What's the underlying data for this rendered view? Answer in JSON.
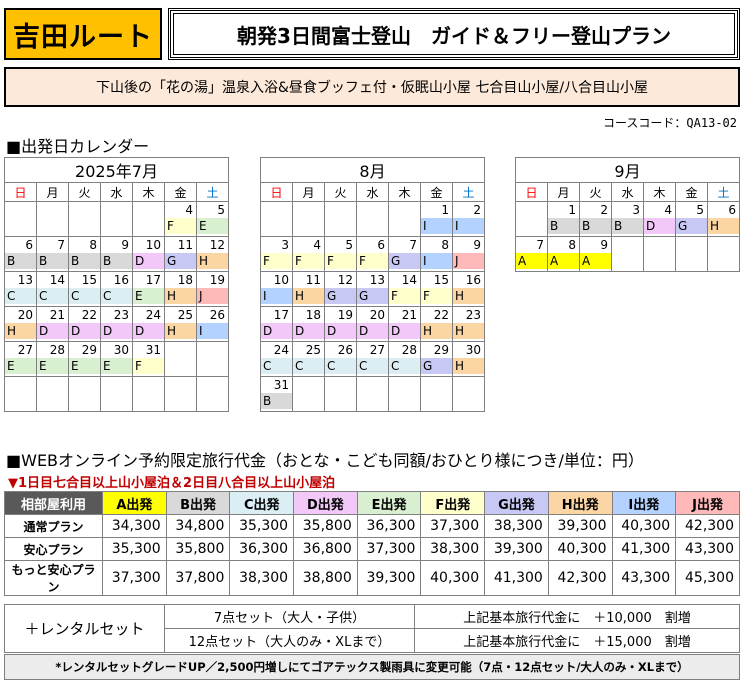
{
  "header": {
    "route": "吉田ルート",
    "title": "朝発3日間富士登山　ガイド＆フリー登山プラン",
    "subtitle": "下山後の「花の湯」温泉入浴&昼食ブッフェ付・仮眠山小屋 七合目山小屋/八合目山小屋",
    "course_code": "コースコード：QA13-02"
  },
  "calendar_title": "■出発日カレンダー",
  "weekdays": [
    "日",
    "月",
    "火",
    "水",
    "木",
    "金",
    "土"
  ],
  "colors": {
    "A": "#ffff00",
    "B": "#d9d9d9",
    "C": "#daeef3",
    "D": "#f2c8f8",
    "E": "#d8f0d0",
    "F": "#ffffcc",
    "G": "#c8c8f4",
    "H": "#fcd5a4",
    "I": "#b4d2ff",
    "J": "#ffb9b9"
  },
  "months": [
    {
      "label": "2025年7月",
      "weeks": [
        [
          null,
          null,
          null,
          null,
          null,
          [
            "4",
            "F"
          ],
          [
            "5",
            "E"
          ]
        ],
        [
          [
            "6",
            "B"
          ],
          [
            "7",
            "B"
          ],
          [
            "8",
            "B"
          ],
          [
            "9",
            "B"
          ],
          [
            "10",
            "D"
          ],
          [
            "11",
            "G"
          ],
          [
            "12",
            "H"
          ]
        ],
        [
          [
            "13",
            "C"
          ],
          [
            "14",
            "C"
          ],
          [
            "15",
            "C"
          ],
          [
            "16",
            "C"
          ],
          [
            "17",
            "E"
          ],
          [
            "18",
            "H"
          ],
          [
            "19",
            "J"
          ]
        ],
        [
          [
            "20",
            "H"
          ],
          [
            "21",
            "D"
          ],
          [
            "22",
            "D"
          ],
          [
            "23",
            "D"
          ],
          [
            "24",
            "D"
          ],
          [
            "25",
            "H"
          ],
          [
            "26",
            "I"
          ]
        ],
        [
          [
            "27",
            "E"
          ],
          [
            "28",
            "E"
          ],
          [
            "29",
            "E"
          ],
          [
            "30",
            "E"
          ],
          [
            "31",
            "F"
          ],
          null,
          null
        ],
        [
          null,
          null,
          null,
          null,
          null,
          null,
          null
        ]
      ]
    },
    {
      "label": "8月",
      "weeks": [
        [
          null,
          null,
          null,
          null,
          null,
          [
            "1",
            "I"
          ],
          [
            "2",
            "I"
          ]
        ],
        [
          [
            "3",
            "F"
          ],
          [
            "4",
            "F"
          ],
          [
            "5",
            "F"
          ],
          [
            "6",
            "F"
          ],
          [
            "7",
            "G"
          ],
          [
            "8",
            "I"
          ],
          [
            "9",
            "J"
          ]
        ],
        [
          [
            "10",
            "I"
          ],
          [
            "11",
            "H"
          ],
          [
            "12",
            "G"
          ],
          [
            "13",
            "G"
          ],
          [
            "14",
            "F"
          ],
          [
            "15",
            "F"
          ],
          [
            "16",
            "H"
          ]
        ],
        [
          [
            "17",
            "D"
          ],
          [
            "18",
            "D"
          ],
          [
            "19",
            "D"
          ],
          [
            "20",
            "D"
          ],
          [
            "21",
            "D"
          ],
          [
            "22",
            "H"
          ],
          [
            "23",
            "H"
          ]
        ],
        [
          [
            "24",
            "C"
          ],
          [
            "25",
            "C"
          ],
          [
            "26",
            "C"
          ],
          [
            "27",
            "C"
          ],
          [
            "28",
            "C"
          ],
          [
            "29",
            "G"
          ],
          [
            "30",
            "H"
          ]
        ],
        [
          [
            "31",
            "B"
          ],
          null,
          null,
          null,
          null,
          null,
          null
        ]
      ]
    },
    {
      "label": "9月",
      "weeks": [
        [
          null,
          [
            "1",
            "B"
          ],
          [
            "2",
            "B"
          ],
          [
            "3",
            "B"
          ],
          [
            "4",
            "D"
          ],
          [
            "5",
            "G"
          ],
          [
            "6",
            "H"
          ]
        ],
        [
          [
            "7",
            "A"
          ],
          [
            "8",
            "A"
          ],
          [
            "9",
            "A"
          ],
          null,
          null,
          null,
          null
        ]
      ]
    }
  ],
  "price": {
    "title": "■WEBオンライン予約限定旅行代金（おとな・こども同額/おひとり様につき/単位：円）",
    "note": "▼1日目七合目以上山小屋泊＆2日目八合目以上山小屋泊",
    "corner": "相部屋利用",
    "columns": [
      "A出発",
      "B出発",
      "C出発",
      "D出発",
      "E出発",
      "F出発",
      "G出発",
      "H出発",
      "I出発",
      "J出発"
    ],
    "column_keys": [
      "A",
      "B",
      "C",
      "D",
      "E",
      "F",
      "G",
      "H",
      "I",
      "J"
    ],
    "rows": [
      {
        "label": "通常プラン",
        "values": [
          "34,300",
          "34,800",
          "35,300",
          "35,800",
          "36,300",
          "37,300",
          "38,300",
          "39,300",
          "40,300",
          "42,300"
        ]
      },
      {
        "label": "安心プラン",
        "values": [
          "35,300",
          "35,800",
          "36,300",
          "36,800",
          "37,300",
          "38,300",
          "39,300",
          "40,300",
          "41,300",
          "43,300"
        ]
      },
      {
        "label": "もっと安心プラン",
        "values": [
          "37,300",
          "37,800",
          "38,300",
          "38,800",
          "39,300",
          "40,300",
          "41,300",
          "42,300",
          "43,300",
          "45,300"
        ]
      }
    ]
  },
  "rental": {
    "label": "＋レンタルセット",
    "rows": [
      {
        "set": "7点セット（大人・子供）",
        "price": "上記基本旅行代金に　＋10,000　割増"
      },
      {
        "set": "12点セット（大人のみ・XLまで）",
        "price": "上記基本旅行代金に　＋15,000　割増"
      }
    ],
    "footnote": "*レンタルセットグレードUP／2,500円増しにてゴアテックス製雨具に変更可能（7点・12点セット/大人のみ・XLまで）"
  }
}
